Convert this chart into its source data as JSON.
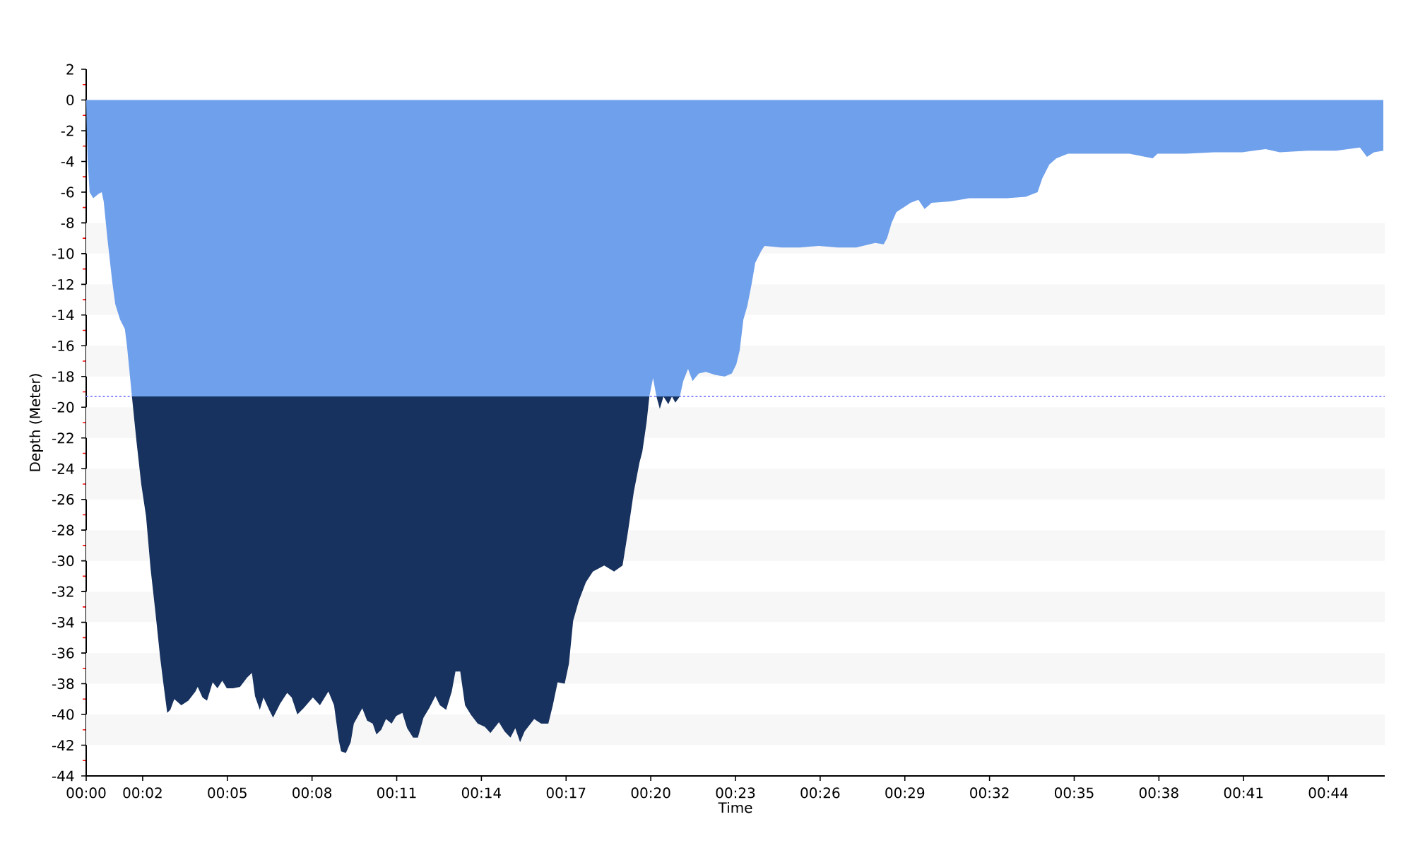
{
  "chart_data": {
    "type": "area",
    "xlabel": "Time",
    "ylabel": "Depth (Meter)",
    "stacked": true,
    "xlim": [
      0,
      46
    ],
    "ylim": [
      -44,
      2
    ],
    "xticks": [
      {
        "value": 0,
        "label": "00:00"
      },
      {
        "value": 2,
        "label": "00:02"
      },
      {
        "value": 5,
        "label": "00:05"
      },
      {
        "value": 8,
        "label": "00:08"
      },
      {
        "value": 11,
        "label": "00:11"
      },
      {
        "value": 14,
        "label": "00:14"
      },
      {
        "value": 17,
        "label": "00:17"
      },
      {
        "value": 20,
        "label": "00:20"
      },
      {
        "value": 23,
        "label": "00:23"
      },
      {
        "value": 26,
        "label": "00:26"
      },
      {
        "value": 29,
        "label": "00:29"
      },
      {
        "value": 32,
        "label": "00:32"
      },
      {
        "value": 35,
        "label": "00:35"
      },
      {
        "value": 38,
        "label": "00:38"
      },
      {
        "value": 41,
        "label": "00:41"
      },
      {
        "value": 44,
        "label": "00:44"
      }
    ],
    "yticks": [
      -44,
      -42,
      -40,
      -38,
      -36,
      -34,
      -32,
      -30,
      -28,
      -26,
      -24,
      -22,
      -20,
      -18,
      -16,
      -14,
      -12,
      -10,
      -8,
      -6,
      -4,
      -2,
      0,
      2
    ],
    "x": [
      0,
      0.02,
      0.05,
      0.12,
      0.25,
      0.45,
      0.55,
      0.62,
      0.75,
      0.92,
      1.03,
      1.2,
      1.37,
      1.45,
      1.62,
      1.78,
      1.95,
      2.12,
      2.28,
      2.45,
      2.62,
      2.75,
      2.87,
      2.98,
      3.12,
      3.37,
      3.62,
      3.87,
      3.95,
      4.12,
      4.28,
      4.48,
      4.65,
      4.82,
      4.98,
      5.2,
      5.45,
      5.7,
      5.87,
      5.98,
      6.15,
      6.28,
      6.48,
      6.62,
      6.87,
      7.12,
      7.28,
      7.48,
      7.7,
      8.03,
      8.28,
      8.58,
      8.78,
      8.95,
      9.03,
      9.2,
      9.37,
      9.48,
      9.78,
      9.95,
      10.15,
      10.28,
      10.45,
      10.62,
      10.82,
      10.98,
      11.2,
      11.37,
      11.58,
      11.75,
      11.95,
      12.15,
      12.37,
      12.53,
      12.75,
      12.95,
      13.08,
      13.25,
      13.42,
      13.62,
      13.87,
      14.12,
      14.32,
      14.62,
      14.82,
      15.03,
      15.2,
      15.37,
      15.53,
      15.87,
      16.12,
      16.37,
      16.53,
      16.7,
      16.95,
      17.1,
      17.25,
      17.45,
      17.7,
      17.95,
      18.35,
      18.7,
      19.0,
      19.2,
      19.4,
      19.6,
      19.7,
      19.85,
      19.95,
      20.08,
      20.2,
      20.32,
      20.45,
      20.62,
      20.75,
      20.87,
      21.03,
      21.15,
      21.32,
      21.48,
      21.7,
      21.95,
      22.28,
      22.62,
      22.87,
      23.03,
      23.15,
      23.28,
      23.42,
      23.58,
      23.7,
      23.92,
      24.03,
      24.62,
      25.28,
      25.95,
      26.62,
      27.28,
      27.95,
      28.25,
      28.37,
      28.53,
      28.7,
      28.95,
      29.2,
      29.48,
      29.7,
      29.95,
      30.62,
      31.28,
      31.95,
      32.62,
      33.28,
      33.7,
      33.87,
      34.12,
      34.37,
      34.78,
      35.28,
      36.12,
      36.95,
      37.78,
      37.95,
      38.95,
      39.95,
      40.95,
      41.78,
      42.28,
      43.28,
      44.28,
      45.12,
      45.37,
      45.62,
      45.95
    ],
    "series": [
      {
        "color": "#6fa0eb",
        "values": [
          0,
          -2.0,
          -3.8,
          -6.0,
          -6.4,
          -6.1,
          -6.0,
          -6.6,
          -9.0,
          -11.8,
          -13.3,
          -14.3,
          -14.9,
          -16.1,
          -19.3,
          -19.3,
          -19.3,
          -19.3,
          -19.3,
          -19.3,
          -19.3,
          -19.3,
          -19.3,
          -19.3,
          -19.3,
          -19.3,
          -19.3,
          -19.3,
          -19.3,
          -19.3,
          -19.3,
          -19.3,
          -19.3,
          -19.3,
          -19.3,
          -19.3,
          -19.3,
          -19.3,
          -19.3,
          -19.3,
          -19.3,
          -19.3,
          -19.3,
          -19.3,
          -19.3,
          -19.3,
          -19.3,
          -19.3,
          -19.3,
          -19.3,
          -19.3,
          -19.3,
          -19.3,
          -19.3,
          -19.3,
          -19.3,
          -19.3,
          -19.3,
          -19.3,
          -19.3,
          -19.3,
          -19.3,
          -19.3,
          -19.3,
          -19.3,
          -19.3,
          -19.3,
          -19.3,
          -19.3,
          -19.3,
          -19.3,
          -19.3,
          -19.3,
          -19.3,
          -19.3,
          -19.3,
          -19.3,
          -19.3,
          -19.3,
          -19.3,
          -19.3,
          -19.3,
          -19.3,
          -19.3,
          -19.3,
          -19.3,
          -19.3,
          -19.3,
          -19.3,
          -19.3,
          -19.3,
          -19.3,
          -19.3,
          -19.3,
          -19.3,
          -19.3,
          -19.3,
          -19.3,
          -19.3,
          -19.3,
          -19.3,
          -19.3,
          -19.3,
          -19.3,
          -19.3,
          -19.3,
          -19.3,
          -19.3,
          -19.3,
          -18.1,
          -19.3,
          -19.3,
          -19.3,
          -19.3,
          -19.3,
          -19.3,
          -19.3,
          -18.3,
          -17.5,
          -18.3,
          -17.8,
          -17.7,
          -17.9,
          -18.0,
          -17.8,
          -17.2,
          -16.3,
          -14.3,
          -13.4,
          -11.9,
          -10.6,
          -9.8,
          -9.5,
          -9.6,
          -9.6,
          -9.5,
          -9.6,
          -9.6,
          -9.3,
          -9.4,
          -9.0,
          -8.0,
          -7.3,
          -7.0,
          -6.7,
          -6.5,
          -7.1,
          -6.7,
          -6.6,
          -6.4,
          -6.4,
          -6.4,
          -6.3,
          -6.0,
          -5.1,
          -4.2,
          -3.8,
          -3.5,
          -3.5,
          -3.5,
          -3.5,
          -3.8,
          -3.5,
          -3.5,
          -3.4,
          -3.4,
          -3.2,
          -3.4,
          -3.3,
          -3.3,
          -3.1,
          -3.7,
          -3.4,
          -3.3
        ]
      },
      {
        "color": "#17325f",
        "values": [
          0,
          0,
          0,
          0,
          0,
          0,
          0,
          0,
          0,
          0,
          0,
          0,
          0,
          0,
          0,
          -2.9,
          -5.7,
          -7.8,
          -11.2,
          -14.0,
          -17.0,
          -18.9,
          -20.6,
          -20.4,
          -19.7,
          -20.1,
          -19.8,
          -19.2,
          -18.9,
          -19.6,
          -19.8,
          -18.6,
          -19.0,
          -18.5,
          -19.0,
          -19.0,
          -18.9,
          -18.3,
          -18.0,
          -19.5,
          -20.4,
          -19.6,
          -20.4,
          -20.9,
          -20.0,
          -19.3,
          -19.6,
          -20.7,
          -20.3,
          -19.6,
          -20.1,
          -19.2,
          -20.1,
          -22.4,
          -23.1,
          -23.2,
          -22.5,
          -21.3,
          -20.3,
          -21.1,
          -21.3,
          -22.0,
          -21.7,
          -21.0,
          -21.3,
          -20.8,
          -20.6,
          -21.6,
          -22.2,
          -22.2,
          -20.9,
          -20.3,
          -19.5,
          -20.1,
          -20.4,
          -19.2,
          -17.9,
          -17.9,
          -20.1,
          -20.7,
          -21.3,
          -21.5,
          -21.9,
          -21.2,
          -21.8,
          -22.2,
          -21.6,
          -22.5,
          -21.8,
          -21.0,
          -21.3,
          -21.3,
          -20.1,
          -18.6,
          -18.7,
          -17.4,
          -14.6,
          -13.3,
          -12.1,
          -11.4,
          -11.0,
          -11.4,
          -11.0,
          -8.7,
          -6.2,
          -4.3,
          -3.6,
          -1.7,
          0,
          0,
          0,
          -0.8,
          0,
          -0.5,
          0,
          -0.4,
          0,
          0,
          0,
          0,
          0,
          0,
          0,
          0,
          0,
          0,
          0,
          0,
          0,
          0,
          0,
          0,
          0,
          0,
          0,
          0,
          0,
          0,
          0,
          0,
          0,
          0,
          0,
          0,
          0,
          0,
          0,
          0,
          0,
          0,
          0,
          0,
          0,
          0,
          0,
          0,
          0,
          0,
          0,
          0,
          0,
          0,
          0,
          0,
          0,
          0,
          0,
          0,
          0,
          0,
          0,
          0,
          0,
          0
        ]
      }
    ],
    "ref_lines": [
      {
        "axis": "y",
        "value": -19.3,
        "color": "#8c8cff",
        "line_style": "dotted"
      }
    ],
    "bands": [
      {
        "axis": "y",
        "from": -10,
        "to": -8,
        "color": "#f7f7f7"
      },
      {
        "axis": "y",
        "from": -14,
        "to": -12,
        "color": "#f7f7f7"
      },
      {
        "axis": "y",
        "from": -18,
        "to": -16,
        "color": "#f7f7f7"
      },
      {
        "axis": "y",
        "from": -22,
        "to": -20,
        "color": "#f7f7f7"
      },
      {
        "axis": "y",
        "from": -26,
        "to": -24,
        "color": "#f7f7f7"
      },
      {
        "axis": "y",
        "from": -30,
        "to": -28,
        "color": "#f7f7f7"
      },
      {
        "axis": "y",
        "from": -34,
        "to": -32,
        "color": "#f7f7f7"
      },
      {
        "axis": "y",
        "from": -38,
        "to": -36,
        "color": "#f7f7f7"
      },
      {
        "axis": "y",
        "from": -42,
        "to": -40,
        "color": "#f7f7f7"
      }
    ]
  }
}
